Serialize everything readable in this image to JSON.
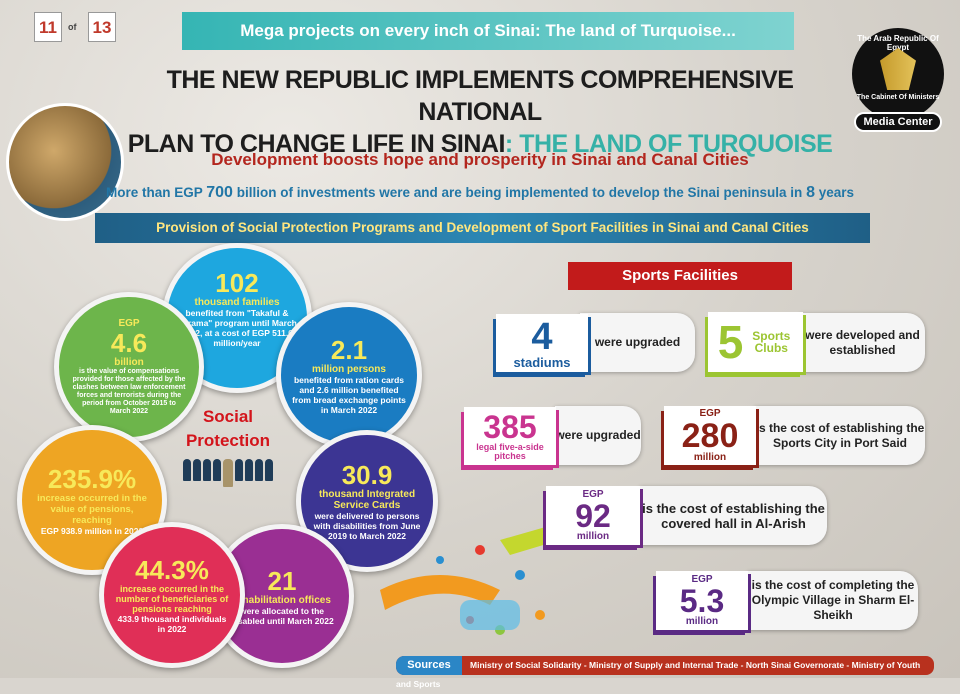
{
  "page": {
    "current": "11",
    "of": "of",
    "total": "13"
  },
  "top_banner": "Mega projects on every inch of Sinai: The land of Turquoise...",
  "headline": {
    "line1": "THE NEW REPUBLIC IMPLEMENTS COMPREHENSIVE NATIONAL",
    "line2": "PLAN TO CHANGE LIFE IN SINAI",
    "highlight": ": THE LAND OF TURQUOISE"
  },
  "logo": {
    "ring_text": "The Arab Republic Of Egypt",
    "inner_text": "The Cabinet Of Ministers",
    "badge": "Media Center"
  },
  "subtitle": "Development boosts hope and prosperity in Sinai and Canal Cities",
  "investment": {
    "pre": "More than EGP ",
    "amount": "700",
    "post": " billion of investments were and are being implemented to develop the Sinai peninsula in ",
    "years": "8",
    "post2": " years"
  },
  "section_band": "Provision of Social Protection Programs and Development of Sport Facilities in Sinai and Canal Cities",
  "social": {
    "title1": "Social",
    "title2": "Protection",
    "takaful": {
      "value": "102",
      "unit": "thousand families",
      "text": "benefited from \"Takaful & Karama\" program until March 2022, at a cost of EGP 511.6 million/year",
      "color": "#1ea7df"
    },
    "compensation": {
      "pre": "EGP",
      "value": "4.6",
      "unit": "billion",
      "text": "is the value of compensations provided for those affected by the clashes between law enforcement forces and terrorists during the period from October 2015 to March 2022",
      "color": "#6db54b"
    },
    "ration": {
      "value": "2.1",
      "unit": "million persons",
      "text": "benefited from ration cards and 2.6 million benefited from bread exchange points in March 2022",
      "color": "#1a7cc2"
    },
    "pensions": {
      "value": "235.9%",
      "unit": "increase occurred in the value of pensions, reaching",
      "text": "EGP 938.9 million in 2022",
      "color": "#eea523"
    },
    "cards": {
      "value": "30.9",
      "unit": "thousand Integrated Service Cards",
      "text": "were delivered to persons with disabilities from June 2019 to March 2022",
      "color": "#3c3593"
    },
    "beneficiaries": {
      "value": "44.3%",
      "unit": "increase occurred in the number of beneficiaries of pensions reaching",
      "text": "433.9 thousand individuals in 2022",
      "color": "#e02f57"
    },
    "rehab": {
      "value": "21",
      "unit": "rehabilitation offices",
      "text": "were allocated to the disabled until March 2022",
      "color": "#9a2f93"
    }
  },
  "sports": {
    "title": "Sports Facilities",
    "items": [
      {
        "value": "4",
        "label": "stadiums",
        "text": "were upgraded",
        "color": "#1b5c9e"
      },
      {
        "value": "5",
        "label": "Sports Clubs",
        "text": "were developed and established",
        "color": "#9cc532"
      },
      {
        "value": "385",
        "label": "legal five-a-side pitches",
        "text": "were upgraded",
        "color": "#c9348f"
      },
      {
        "pre": "EGP",
        "value": "280",
        "label": "million",
        "text": "is the cost of establishing the Sports City in Port Said",
        "color": "#8a2116"
      },
      {
        "pre": "EGP",
        "value": "92",
        "label": "million",
        "text": "is the cost of establishing the covered hall in Al-Arish",
        "color": "#6b2a84"
      },
      {
        "pre": "EGP",
        "value": "5.3",
        "label": "million",
        "text": "is the cost of completing the Olympic Village in Sharm El-Sheikh",
        "color": "#5a2a84"
      }
    ]
  },
  "sources": {
    "label": "Sources",
    "text": "Ministry of Social Solidarity - Ministry of Supply and Internal Trade - North Sinai Governorate - Ministry of Youth and Sports"
  }
}
